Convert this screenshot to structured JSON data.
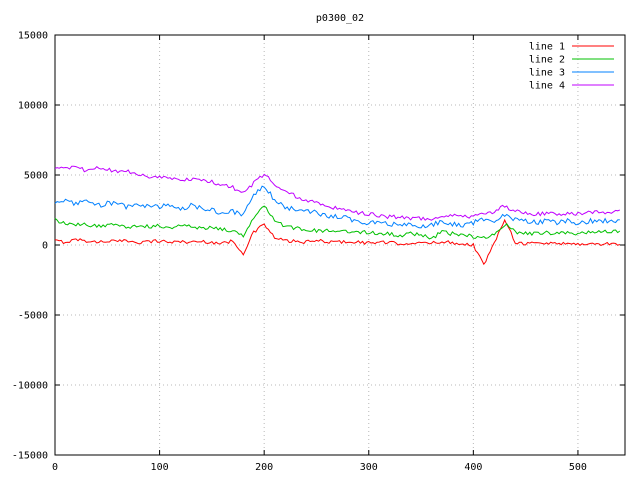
{
  "title": "p0300_02",
  "chart_data": {
    "type": "line",
    "title": "p0300_02",
    "xlabel": "",
    "ylabel": "",
    "xlim": [
      0,
      545
    ],
    "ylim": [
      -15000,
      15000
    ],
    "x_ticks": [
      0,
      100,
      200,
      300,
      400,
      500
    ],
    "y_ticks": [
      -15000,
      -10000,
      -5000,
      0,
      5000,
      10000,
      15000
    ],
    "grid": true,
    "grid_style": "dotted",
    "legend_position": "top-right",
    "background": "#ffffff",
    "border_color": "#000000",
    "grid_color": "#b8b8b8",
    "x": [
      0,
      10,
      20,
      30,
      40,
      50,
      60,
      70,
      80,
      90,
      100,
      110,
      120,
      130,
      140,
      150,
      160,
      170,
      180,
      190,
      200,
      210,
      220,
      230,
      240,
      250,
      260,
      270,
      280,
      290,
      300,
      310,
      320,
      330,
      340,
      350,
      360,
      370,
      380,
      390,
      400,
      410,
      420,
      430,
      440,
      450,
      460,
      470,
      480,
      490,
      500,
      510,
      520,
      530,
      540
    ],
    "series": [
      {
        "name": "line 1",
        "color": "#ff0000",
        "noise": 120,
        "values": [
          300,
          200,
          400,
          300,
          200,
          300,
          250,
          300,
          200,
          250,
          300,
          200,
          250,
          200,
          250,
          200,
          100,
          300,
          -600,
          900,
          1500,
          500,
          300,
          250,
          200,
          300,
          250,
          200,
          250,
          200,
          150,
          200,
          150,
          100,
          150,
          100,
          150,
          250,
          150,
          100,
          0,
          -1400,
          100,
          1900,
          200,
          100,
          150,
          100,
          150,
          100,
          50,
          100,
          50,
          100,
          50
        ]
      },
      {
        "name": "line 2",
        "color": "#00c000",
        "noise": 140,
        "values": [
          1800,
          1500,
          1400,
          1500,
          1300,
          1400,
          1500,
          1300,
          1400,
          1300,
          1400,
          1200,
          1400,
          1300,
          1200,
          1300,
          1100,
          1000,
          700,
          2000,
          2900,
          1800,
          1300,
          1200,
          1100,
          1000,
          1000,
          900,
          1000,
          900,
          900,
          800,
          800,
          700,
          800,
          700,
          500,
          900,
          800,
          700,
          600,
          500,
          800,
          1500,
          900,
          900,
          800,
          900,
          800,
          900,
          800,
          900,
          1000,
          900,
          1000
        ]
      },
      {
        "name": "line 3",
        "color": "#0080ff",
        "noise": 180,
        "values": [
          3000,
          3200,
          2900,
          3100,
          2800,
          3000,
          2900,
          2700,
          2900,
          2800,
          2700,
          2900,
          2600,
          2800,
          2600,
          2500,
          2300,
          2400,
          2100,
          3500,
          4300,
          3200,
          2700,
          2500,
          2400,
          2300,
          2100,
          2000,
          1900,
          1700,
          1600,
          1500,
          1500,
          1400,
          1400,
          1300,
          1400,
          1700,
          1500,
          1400,
          1600,
          1800,
          1700,
          2200,
          1800,
          1700,
          1600,
          1700,
          1600,
          1700,
          1600,
          1700,
          1800,
          1700,
          1800
        ]
      },
      {
        "name": "line 4",
        "color": "#c000ff",
        "noise": 140,
        "values": [
          5500,
          5400,
          5600,
          5300,
          5500,
          5400,
          5200,
          5300,
          5000,
          4900,
          4800,
          4800,
          4700,
          4700,
          4600,
          4500,
          4300,
          4100,
          3800,
          4400,
          5100,
          4400,
          3800,
          3500,
          3200,
          3000,
          2800,
          2600,
          2400,
          2300,
          2200,
          2100,
          2000,
          2000,
          1900,
          1900,
          1800,
          2000,
          2200,
          2100,
          2000,
          2200,
          2400,
          2800,
          2400,
          2300,
          2200,
          2300,
          2200,
          2300,
          2200,
          2300,
          2400,
          2300,
          2500
        ]
      }
    ]
  }
}
